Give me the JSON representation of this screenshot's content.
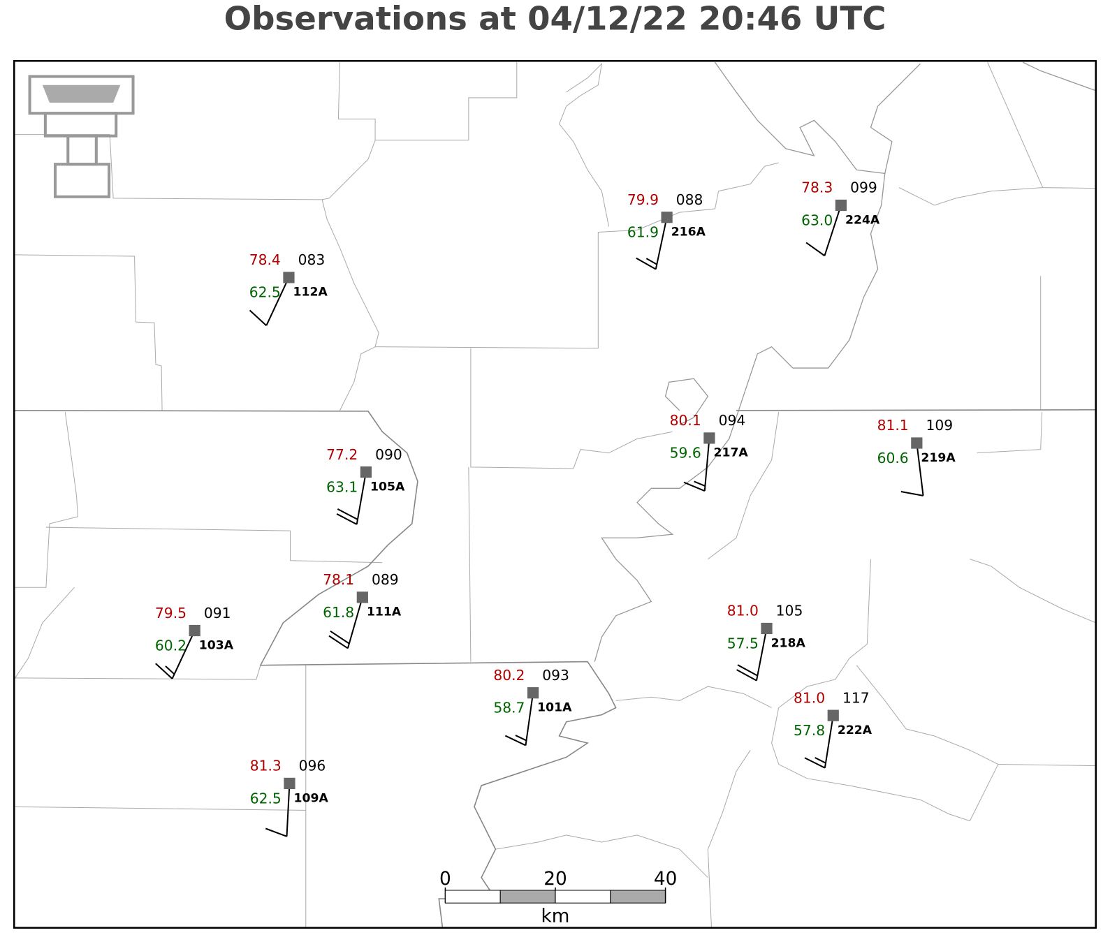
{
  "title": "Observations at 04/12/22 20:46 UTC",
  "stations": [
    {
      "id": "112A",
      "temperature": "78.4",
      "dewpoint": "62.5",
      "pressure": "083",
      "wind_direction": 205,
      "wind_speed": 10
    },
    {
      "id": "216A",
      "temperature": "79.9",
      "dewpoint": "61.9",
      "pressure": "088",
      "wind_direction": 192,
      "wind_speed": 15
    },
    {
      "id": "224A",
      "temperature": "78.3",
      "dewpoint": "63.0",
      "pressure": "099",
      "wind_direction": 198,
      "wind_speed": 10
    },
    {
      "id": "105A",
      "temperature": "77.2",
      "dewpoint": "63.1",
      "pressure": "090",
      "wind_direction": 190,
      "wind_speed": 20
    },
    {
      "id": "217A",
      "temperature": "80.1",
      "dewpoint": "59.6",
      "pressure": "094",
      "wind_direction": 185,
      "wind_speed": 15
    },
    {
      "id": "219A",
      "temperature": "81.1",
      "dewpoint": "60.6",
      "pressure": "109",
      "wind_direction": 173,
      "wind_speed": 10
    },
    {
      "id": "111A",
      "temperature": "78.1",
      "dewpoint": "61.8",
      "pressure": "089",
      "wind_direction": 196,
      "wind_speed": 20
    },
    {
      "id": "103A",
      "temperature": "79.5",
      "dewpoint": "60.2",
      "pressure": "091",
      "wind_direction": 205,
      "wind_speed": 15
    },
    {
      "id": "218A",
      "temperature": "81.0",
      "dewpoint": "57.5",
      "pressure": "105",
      "wind_direction": 191,
      "wind_speed": 20
    },
    {
      "id": "101A",
      "temperature": "80.2",
      "dewpoint": "58.7",
      "pressure": "093",
      "wind_direction": 188,
      "wind_speed": 15
    },
    {
      "id": "222A",
      "temperature": "81.0",
      "dewpoint": "57.8",
      "pressure": "117",
      "wind_direction": 189,
      "wind_speed": 15
    },
    {
      "id": "109A",
      "temperature": "81.3",
      "dewpoint": "62.5",
      "pressure": "096",
      "wind_direction": 183,
      "wind_speed": 10
    }
  ],
  "scale_bar": {
    "ticks": [
      0,
      20,
      40
    ],
    "unit": "km"
  }
}
